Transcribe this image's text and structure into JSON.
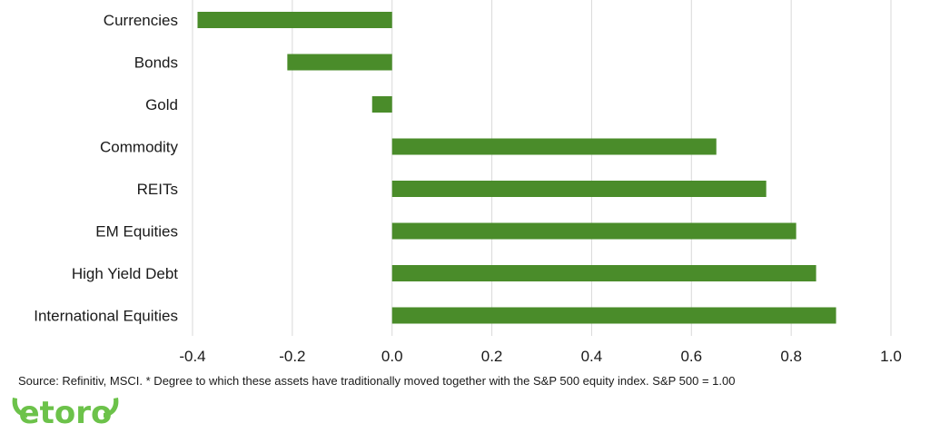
{
  "chart_data": {
    "type": "bar",
    "orientation": "horizontal",
    "categories": [
      "Currencies",
      "Bonds",
      "Gold",
      "Commodity",
      "REITs",
      "EM Equities",
      "High Yield Debt",
      "International Equities"
    ],
    "values": [
      -0.39,
      -0.21,
      -0.04,
      0.65,
      0.75,
      0.81,
      0.85,
      0.89
    ],
    "xlim": [
      -0.4,
      1.0
    ],
    "xticks": [
      "-0.4",
      "-0.2",
      "0.0",
      "0.2",
      "0.4",
      "0.6",
      "0.8",
      "1.0"
    ],
    "grid": true,
    "bar_color": "#4a8c2a"
  },
  "footer": {
    "source": "Source: Refinitiv, MSCI. * Degree to which these assets have traditionally moved together with the S&P 500 equity index. S&P 500 = 1.00"
  },
  "logo": {
    "text": "etoro",
    "color": "#6cc24a"
  }
}
